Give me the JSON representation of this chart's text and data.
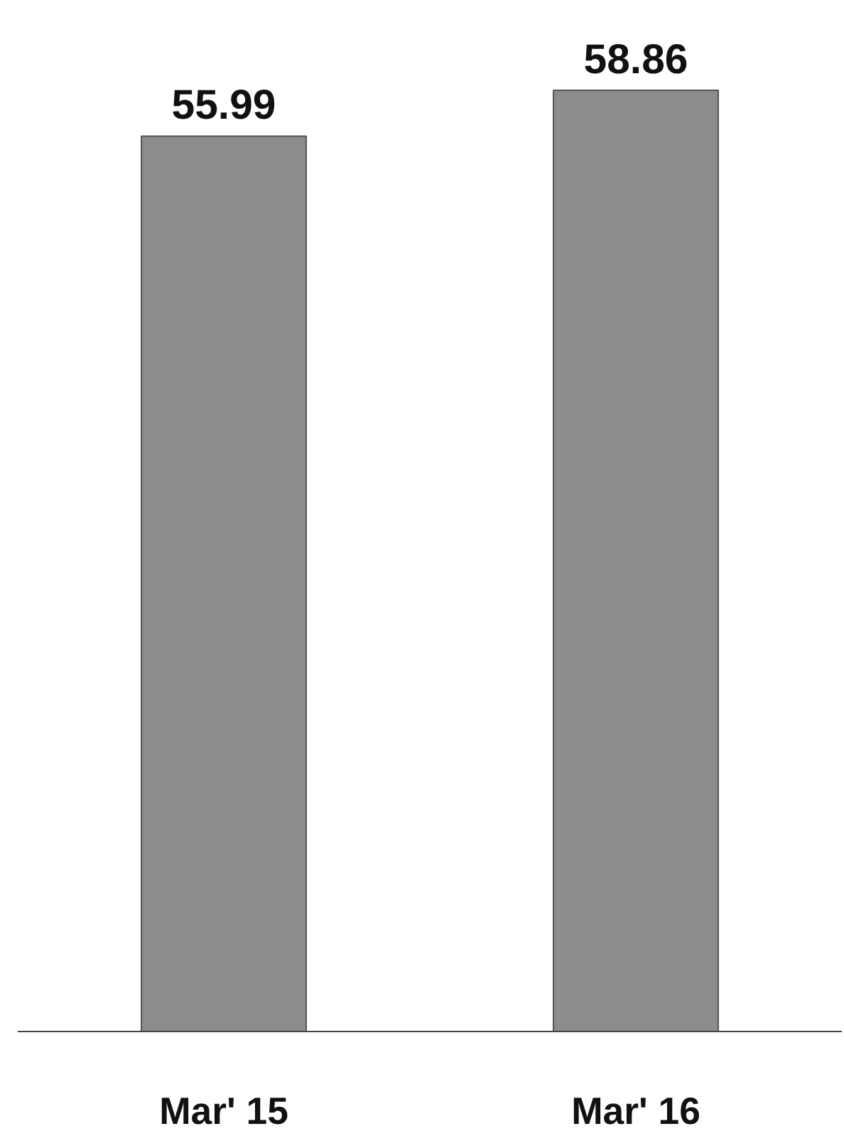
{
  "chart_data": {
    "type": "bar",
    "categories": [
      "Mar' 15",
      "Mar' 16"
    ],
    "values": [
      55.99,
      58.86
    ],
    "color": "#8c8c8c",
    "data_labels": true,
    "tick_labels": "x",
    "grid": false
  }
}
